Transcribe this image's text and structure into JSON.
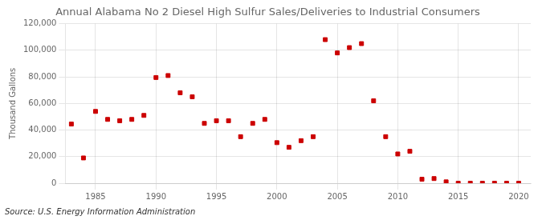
{
  "chart_data": {
    "type": "scatter",
    "title": "Annual Alabama No 2 Diesel High Sulfur Sales/Deliveries to Industrial Consumers",
    "ylabel": "Thousand Gallons",
    "source": "Source: U.S. Energy Information Administration",
    "x": [
      1983,
      1984,
      1985,
      1986,
      1987,
      1988,
      1989,
      1990,
      1991,
      1992,
      1993,
      1994,
      1995,
      1996,
      1997,
      1998,
      1999,
      2000,
      2001,
      2002,
      2003,
      2004,
      2005,
      2006,
      2007,
      2008,
      2009,
      2010,
      2011,
      2012,
      2013,
      2014,
      2015,
      2016,
      2017,
      2018,
      2019,
      2020
    ],
    "values": [
      44500,
      19000,
      54000,
      48000,
      47000,
      48000,
      51000,
      79500,
      81000,
      68000,
      65000,
      45000,
      47000,
      47000,
      35000,
      45000,
      48000,
      30500,
      27000,
      32000,
      35000,
      108000,
      98000,
      102000,
      105000,
      62000,
      35000,
      22000,
      24000,
      3000,
      3500,
      1000,
      0,
      0,
      0,
      0,
      0,
      0
    ],
    "color": "#cc0000",
    "marker": "square",
    "xlim": [
      1982.5,
      2021
    ],
    "xticks": [
      1985,
      1990,
      1995,
      2000,
      2005,
      2010,
      2015,
      2020
    ],
    "ylim": [
      0,
      120000
    ],
    "yticks": [
      0,
      {
        "value": 20000,
        "label": "20,000"
      },
      {
        "value": 40000,
        "label": "40,000"
      },
      {
        "value": 60000,
        "label": "60,000"
      },
      {
        "value": 80000,
        "label": "80,000"
      },
      {
        "value": 100000,
        "label": "100,000"
      },
      {
        "value": 120000,
        "label": "120,000"
      }
    ],
    "grid": true
  }
}
